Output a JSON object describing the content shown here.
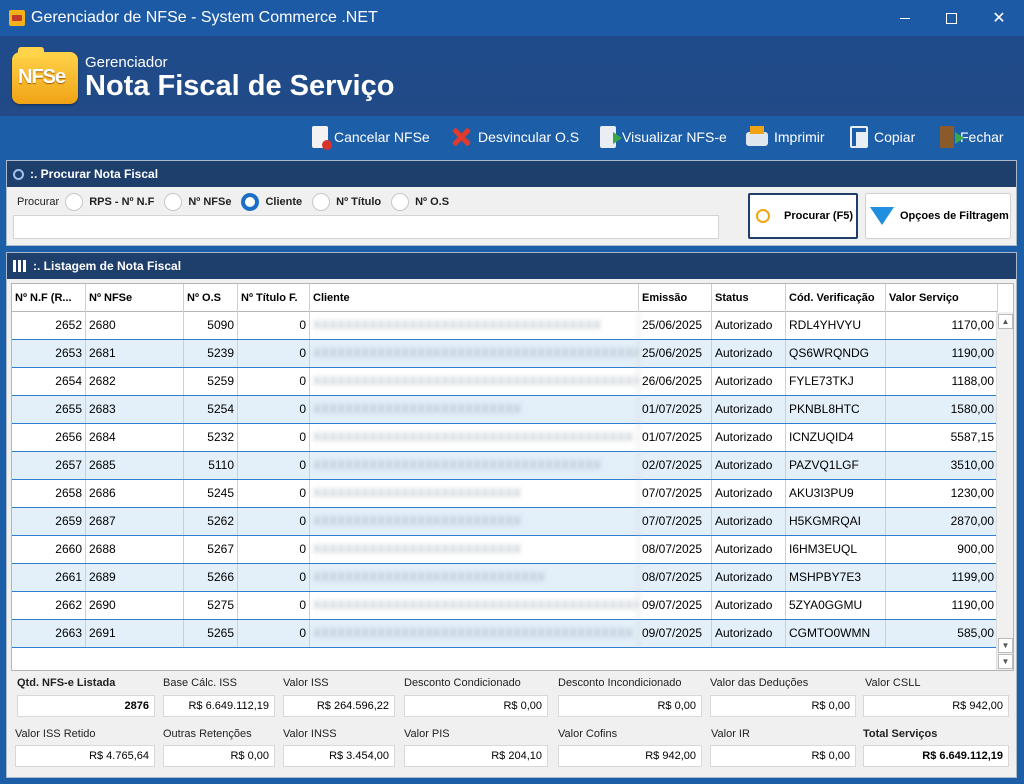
{
  "window": {
    "title": "Gerenciador de NFSe - System Commerce .NET"
  },
  "header": {
    "logo_text": "NFSe",
    "subtitle": "Gerenciador",
    "title": "Nota Fiscal de Serviço"
  },
  "toolbar": {
    "cancel": "Cancelar NFSe",
    "unlink": "Desvincular O.S",
    "view": "Visualizar NFS-e",
    "print": "Imprimir",
    "copy": "Copiar",
    "close": "Fechar"
  },
  "search": {
    "panel_title": ":. Procurar Nota Fiscal",
    "label": "Procurar",
    "options": [
      "RPS - Nº N.F",
      "Nº NFSe",
      "Cliente",
      "Nº Título",
      "Nº O.S"
    ],
    "selected": "Cliente",
    "input_value": "",
    "search_button": "Procurar (F5)",
    "filter_button": "Opçoes de Filtragem"
  },
  "listing": {
    "panel_title": ":. Listagem de Nota Fiscal",
    "columns": [
      "Nº N.F (R...",
      "Nº NFSe",
      "Nº O.S",
      "Nº Título F.",
      "Cliente",
      "Emissão",
      "Status",
      "Cód. Verificação",
      "Valor Serviço"
    ],
    "rows": [
      {
        "nf": "2652",
        "nfse": "2680",
        "os": "5090",
        "titulo": "0",
        "cliente": "XXXXXXXXXXXXXXXXXXXXXXXXXXXXXXXXXXXX",
        "emissao": "25/06/2025",
        "status": "Autorizado",
        "cod": "RDL4YHVYU",
        "valor": "1170,00"
      },
      {
        "nf": "2653",
        "nfse": "2681",
        "os": "5239",
        "titulo": "0",
        "cliente": "XXXXXXXXXXXXXXXXXXXXXXXXXXXXXXXXXXXXXXXXXXXXX",
        "emissao": "25/06/2025",
        "status": "Autorizado",
        "cod": "QS6WRQNDG",
        "valor": "1190,00"
      },
      {
        "nf": "2654",
        "nfse": "2682",
        "os": "5259",
        "titulo": "0",
        "cliente": "XXXXXXXXXXXXXXXXXXXXXXXXXXXXXXXXXXXXXXXXXXXXX",
        "emissao": "26/06/2025",
        "status": "Autorizado",
        "cod": "FYLE73TKJ",
        "valor": "1188,00"
      },
      {
        "nf": "2655",
        "nfse": "2683",
        "os": "5254",
        "titulo": "0",
        "cliente": "XXXXXXXXXXXXXXXXXXXXXXXXXX",
        "emissao": "01/07/2025",
        "status": "Autorizado",
        "cod": "PKNBL8HTC",
        "valor": "1580,00"
      },
      {
        "nf": "2656",
        "nfse": "2684",
        "os": "5232",
        "titulo": "0",
        "cliente": "XXXXXXXXXXXXXXXXXXXXXXXXXXXXXXXXXXXXXXXX",
        "emissao": "01/07/2025",
        "status": "Autorizado",
        "cod": "ICNZUQID4",
        "valor": "5587,15"
      },
      {
        "nf": "2657",
        "nfse": "2685",
        "os": "5110",
        "titulo": "0",
        "cliente": "XXXXXXXXXXXXXXXXXXXXXXXXXXXXXXXXXXXX",
        "emissao": "02/07/2025",
        "status": "Autorizado",
        "cod": "PAZVQ1LGF",
        "valor": "3510,00"
      },
      {
        "nf": "2658",
        "nfse": "2686",
        "os": "5245",
        "titulo": "0",
        "cliente": "XXXXXXXXXXXXXXXXXXXXXXXXXX",
        "emissao": "07/07/2025",
        "status": "Autorizado",
        "cod": "AKU3I3PU9",
        "valor": "1230,00"
      },
      {
        "nf": "2659",
        "nfse": "2687",
        "os": "5262",
        "titulo": "0",
        "cliente": "XXXXXXXXXXXXXXXXXXXXXXXXXX",
        "emissao": "07/07/2025",
        "status": "Autorizado",
        "cod": "H5KGMRQAI",
        "valor": "2870,00"
      },
      {
        "nf": "2660",
        "nfse": "2688",
        "os": "5267",
        "titulo": "0",
        "cliente": "XXXXXXXXXXXXXXXXXXXXXXXXXX",
        "emissao": "08/07/2025",
        "status": "Autorizado",
        "cod": "I6HM3EUQL",
        "valor": "900,00"
      },
      {
        "nf": "2661",
        "nfse": "2689",
        "os": "5266",
        "titulo": "0",
        "cliente": "XXXXXXXXXXXXXXXXXXXXXXXXXXXXX",
        "emissao": "08/07/2025",
        "status": "Autorizado",
        "cod": "MSHPBY7E3",
        "valor": "1199,00"
      },
      {
        "nf": "2662",
        "nfse": "2690",
        "os": "5275",
        "titulo": "0",
        "cliente": "XXXXXXXXXXXXXXXXXXXXXXXXXXXXXXXXXXXXXXXXXXXXXX",
        "emissao": "09/07/2025",
        "status": "Autorizado",
        "cod": "5ZYA0GGMU",
        "valor": "1190,00"
      },
      {
        "nf": "2663",
        "nfse": "2691",
        "os": "5265",
        "titulo": "0",
        "cliente": "XXXXXXXXXXXXXXXXXXXXXXXXXXXXXXXXXXXXXXXX",
        "emissao": "09/07/2025",
        "status": "Autorizado",
        "cod": "CGMTO0WMN",
        "valor": "585,00"
      }
    ]
  },
  "totals": {
    "qtd_label": "Qtd. NFS-e Listada",
    "qtd_value": "2876",
    "base_label": "Base Cálc. ISS",
    "base_value": "R$ 6.649.112,19",
    "iss_label": "Valor ISS",
    "iss_value": "R$ 264.596,22",
    "desc_cond_label": "Desconto Condicionado",
    "desc_cond_value": "R$ 0,00",
    "desc_incond_label": "Desconto Incondicionado",
    "desc_incond_value": "R$ 0,00",
    "deducoes_label": "Valor das Deduções",
    "deducoes_value": "R$ 0,00",
    "csll_label": "Valor CSLL",
    "csll_value": "R$ 942,00",
    "iss_retido_label": "Valor ISS Retido",
    "iss_retido_value": "R$ 4.765,64",
    "outras_label": "Outras Retenções",
    "outras_value": "R$ 0,00",
    "inss_label": "Valor INSS",
    "inss_value": "R$ 3.454,00",
    "pis_label": "Valor PIS",
    "pis_value": "R$ 204,10",
    "cofins_label": "Valor Cofins",
    "cofins_value": "R$ 942,00",
    "ir_label": "Valor IR",
    "ir_value": "R$ 0,00",
    "total_label": "Total Serviços",
    "total_value": "R$ 6.649.112,19"
  },
  "colors": {
    "titlebar": "#1c5aa6",
    "header": "#1f4b8b",
    "panel_head": "#1e3f6c",
    "row_alt": "#e3eff9",
    "row_border": "#2f7fd0"
  }
}
